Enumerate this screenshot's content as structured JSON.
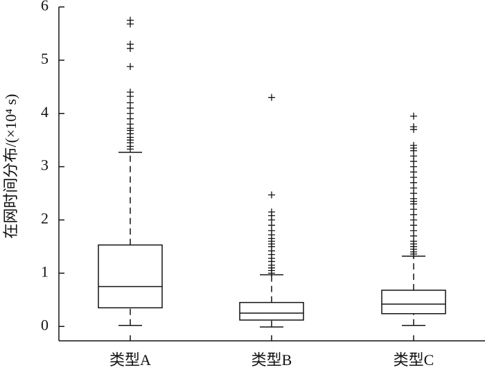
{
  "chart_data": {
    "type": "box",
    "y_label": "在网时间分布/(×10⁴ s)",
    "categories": [
      "类型A",
      "类型B",
      "类型C"
    ],
    "ylim": [
      -0.27,
      6
    ],
    "yticks": [
      0,
      1,
      2,
      3,
      4,
      5,
      6
    ],
    "color": "#111111",
    "boxes": [
      {
        "low": 0.02,
        "q1": 0.35,
        "median": 0.75,
        "q3": 1.53,
        "high": 3.27,
        "outliers": [
          5.75,
          5.68,
          5.3,
          5.22,
          4.88,
          4.4,
          4.32,
          4.2,
          4.1,
          4.0,
          3.9,
          3.8,
          3.72,
          3.68,
          3.62,
          3.55,
          3.5,
          3.45,
          3.38,
          3.33
        ]
      },
      {
        "low": -0.01,
        "q1": 0.12,
        "median": 0.25,
        "q3": 0.45,
        "high": 0.97,
        "outliers": [
          4.3,
          2.47,
          2.15,
          2.08,
          2.0,
          1.9,
          1.8,
          1.72,
          1.65,
          1.6,
          1.55,
          1.5,
          1.42,
          1.35,
          1.28,
          1.22,
          1.15,
          1.1,
          1.05,
          1.0
        ]
      },
      {
        "low": 0.02,
        "q1": 0.24,
        "median": 0.42,
        "q3": 0.68,
        "high": 1.32,
        "outliers": [
          3.95,
          3.75,
          3.7,
          3.4,
          3.35,
          3.3,
          3.2,
          3.1,
          3.0,
          2.9,
          2.8,
          2.7,
          2.6,
          2.5,
          2.4,
          2.35,
          2.3,
          2.2,
          2.1,
          2.0,
          1.9,
          1.8,
          1.7,
          1.6,
          1.55,
          1.5,
          1.45,
          1.4,
          1.36
        ]
      }
    ]
  }
}
